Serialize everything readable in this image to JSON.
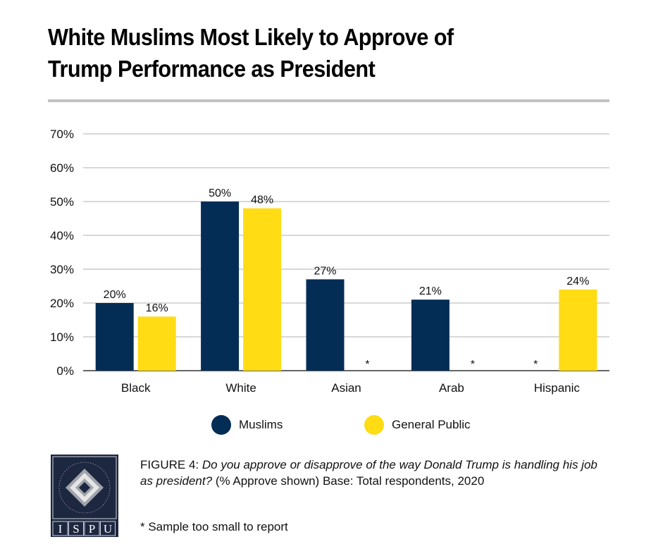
{
  "title_line1": "White Muslims Most Likely to Approve of",
  "title_line2": "Trump Performance as President",
  "colors": {
    "muslims": "#032d55",
    "general_public": "#ffdc14",
    "grid": "#cccccc",
    "axis": "#333333"
  },
  "chart_data": {
    "type": "bar",
    "title": "White Muslims Most Likely to Approve of Trump Performance as President",
    "xlabel": "",
    "ylabel": "",
    "categories": [
      "Black",
      "White",
      "Asian",
      "Arab",
      "Hispanic"
    ],
    "series": [
      {
        "name": "Muslims",
        "values": [
          20,
          50,
          27,
          21,
          null
        ],
        "labels": [
          "20%",
          "50%",
          "27%",
          "21%",
          "*"
        ]
      },
      {
        "name": "General Public",
        "values": [
          16,
          48,
          null,
          null,
          24
        ],
        "labels": [
          "16%",
          "48%",
          "*",
          "*",
          "24%"
        ]
      }
    ],
    "ylim": [
      0,
      70
    ],
    "yticks": [
      0,
      10,
      20,
      30,
      40,
      50,
      60,
      70
    ],
    "ytick_labels": [
      "0%",
      "10%",
      "20%",
      "30%",
      "40%",
      "50%",
      "60%",
      "70%"
    ],
    "grid": true,
    "legend_position": "bottom",
    "missing_marker": "*"
  },
  "legend": [
    {
      "label": "Muslims",
      "color": "#032d55"
    },
    {
      "label": "General Public",
      "color": "#ffdc14"
    }
  ],
  "caption": {
    "figure_label": "FIGURE 4",
    "question": "Do you approve or disapprove of the way Donald Trump is handling his job as president?",
    "details": "(% Approve shown) Base: Total respondents, 2020"
  },
  "footnote": "* Sample too small to report",
  "logo": {
    "ring_text": "INSTITUTE FOR SOCIAL POLICY AND UNDERSTANDING",
    "letters": [
      "I",
      "S",
      "P",
      "U"
    ]
  }
}
